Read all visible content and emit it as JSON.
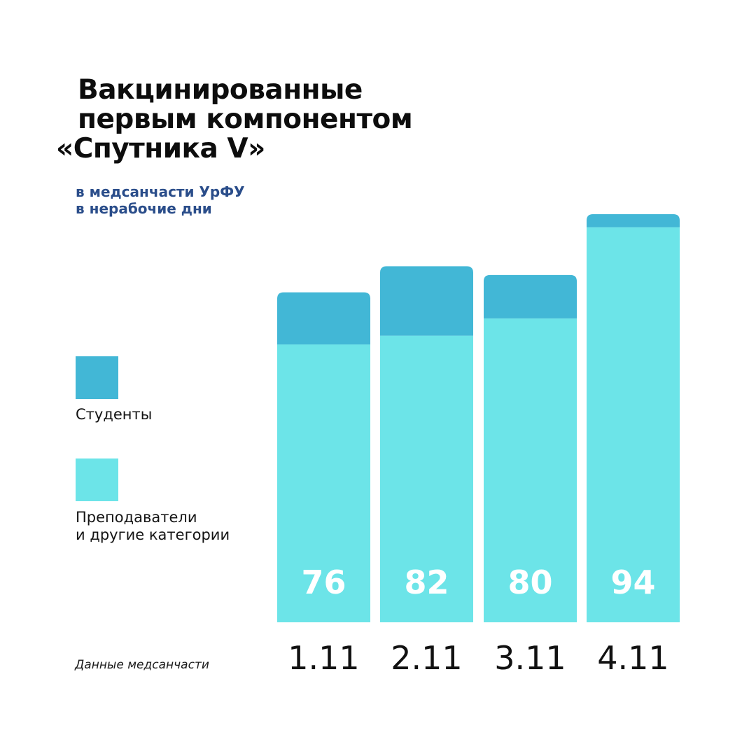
{
  "title": {
    "lines": [
      "Вакцинированные",
      "первым компонентом",
      "«Спутника V»"
    ]
  },
  "subtitle": {
    "lines": [
      "в медсанчасти УрФУ",
      "в нерабочие дни"
    ]
  },
  "legend": [
    {
      "name": "Студенты",
      "color": "#42b7d6",
      "label_lines": [
        "Студенты"
      ]
    },
    {
      "name": "Преподаватели и другие категории",
      "color": "#6ce4e8",
      "label_lines": [
        "Преподаватели",
        "и другие категории"
      ]
    }
  ],
  "source": "Данные медсанчасти",
  "chart_data": {
    "type": "bar",
    "stacked": true,
    "categories": [
      "1.11",
      "2.11",
      "3.11",
      "4.11"
    ],
    "series": [
      {
        "name": "Преподаватели и другие категории",
        "color": "#6ce4e8",
        "values": [
          64,
          66,
          70,
          91
        ]
      },
      {
        "name": "Студенты",
        "color": "#42b7d6",
        "values": [
          12,
          16,
          10,
          3
        ]
      }
    ],
    "totals": [
      76,
      82,
      80,
      94
    ],
    "ylim": [
      0,
      94
    ]
  }
}
